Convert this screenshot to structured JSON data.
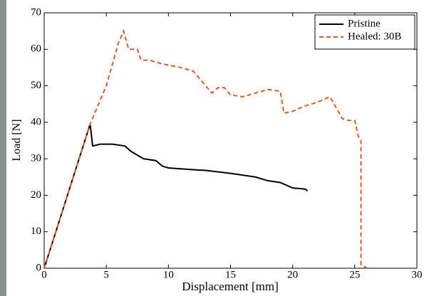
{
  "chart_data": {
    "type": "line",
    "xlabel": "Displacement [mm]",
    "ylabel": "Load [N]",
    "xlim": [
      0,
      30
    ],
    "xticks": [
      0,
      5,
      10,
      15,
      20,
      25,
      30
    ],
    "ylim": [
      0,
      70
    ],
    "yticks": [
      0,
      10,
      20,
      30,
      40,
      50,
      60,
      70
    ],
    "legend": "upper right",
    "series": [
      {
        "name": "Pristine",
        "color": "#000000",
        "dash": false,
        "x": [
          0,
          3.7,
          3.9,
          4.5,
          5.5,
          6.5,
          7,
          8,
          9,
          9.5,
          10,
          12,
          13,
          15,
          17,
          18,
          19,
          20,
          21,
          21.2
        ],
        "values": [
          0,
          39.5,
          33.5,
          34,
          34,
          33.5,
          32,
          30,
          29.5,
          28,
          27.5,
          27,
          26.8,
          26,
          25,
          24,
          23.5,
          22,
          21.7,
          21.2
        ]
      },
      {
        "name": "Healed: 30B",
        "color": "#e5562b",
        "dash": true,
        "x": [
          0,
          3.7,
          5,
          6,
          6.4,
          6.8,
          7.5,
          7.8,
          8.5,
          9.5,
          11,
          12,
          13.5,
          14,
          14.5,
          15,
          16,
          17,
          18,
          19,
          19.3,
          20,
          21,
          22,
          23,
          24,
          24.5,
          25,
          25.3,
          25.5,
          25.5,
          26
        ],
        "values": [
          0,
          39.5,
          50,
          62,
          65,
          60,
          60,
          57,
          57,
          56,
          55,
          54,
          48,
          49.5,
          49.5,
          47.5,
          47,
          48,
          49,
          48.5,
          42.5,
          43,
          44.5,
          45.5,
          47,
          41,
          40.5,
          40.5,
          36,
          35,
          1,
          0
        ]
      }
    ]
  }
}
